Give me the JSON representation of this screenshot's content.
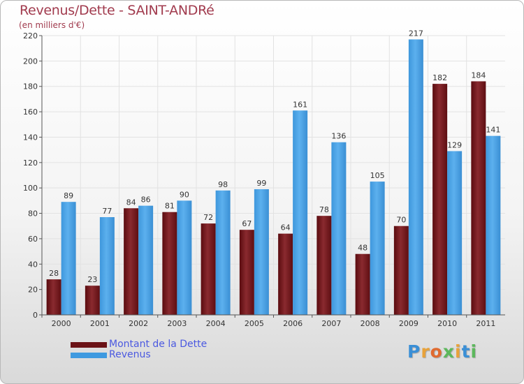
{
  "chart_data": {
    "type": "bar",
    "title": "Revenus/Dette - SAINT-ANDRé",
    "subtitle": "(en milliers d'€)",
    "categories": [
      "2000",
      "2001",
      "2002",
      "2003",
      "2004",
      "2005",
      "2006",
      "2007",
      "2008",
      "2009",
      "2010",
      "2011"
    ],
    "series": [
      {
        "name": "Montant de la Dette",
        "color": "#6b1216",
        "values": [
          28,
          23,
          84,
          81,
          72,
          67,
          64,
          78,
          48,
          70,
          182,
          184
        ]
      },
      {
        "name": "Revenus",
        "color": "#3f9ae0",
        "values": [
          89,
          77,
          86,
          90,
          98,
          99,
          161,
          136,
          105,
          217,
          129,
          141
        ]
      }
    ],
    "ylim": [
      0,
      220
    ],
    "yticks": [
      0,
      20,
      40,
      60,
      80,
      100,
      120,
      140,
      160,
      180,
      200,
      220
    ],
    "grid": true,
    "legend_position": "bottom-left",
    "data_labels": true
  },
  "legend": {
    "items": [
      {
        "label": "Montant de la Dette",
        "color": "#6b1216"
      },
      {
        "label": "Revenus",
        "color": "#3f9ae0"
      }
    ]
  },
  "brand": {
    "letters": [
      {
        "ch": "P",
        "color": "#3a8fd6"
      },
      {
        "ch": "r",
        "color": "#e8a23a"
      },
      {
        "ch": "o",
        "color": "#e06a2f"
      },
      {
        "ch": "x",
        "color": "#5cb85c"
      },
      {
        "ch": "i",
        "color": "#e8a23a"
      },
      {
        "ch": "t",
        "color": "#3a8fd6"
      },
      {
        "ch": "i",
        "color": "#5cb85c"
      }
    ]
  }
}
